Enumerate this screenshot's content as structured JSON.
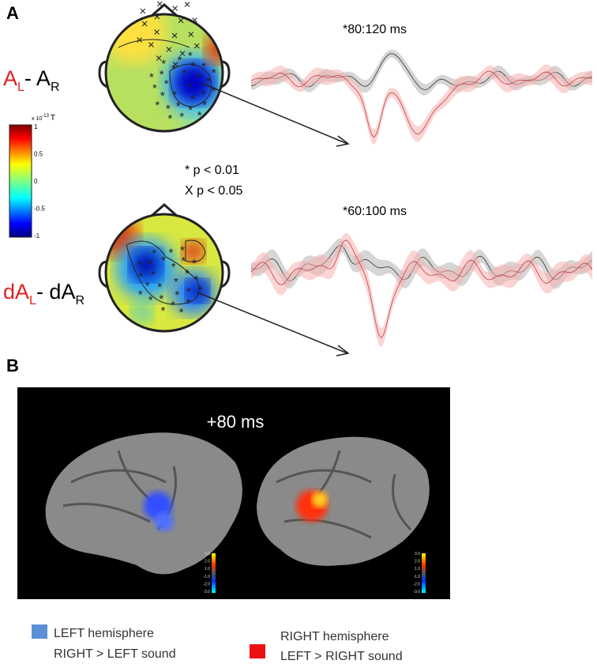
{
  "panel_a": {
    "label": "A",
    "top": {
      "window": "*80:120 ms",
      "cond": {
        "a": "A",
        "a_sub": "L",
        "mid": "- A",
        "b_sub": "R"
      }
    },
    "bottom": {
      "window": "*60:100 ms",
      "cond": {
        "a": "dA",
        "a_sub": "L",
        "mid": "- dA",
        "b_sub": "R"
      }
    },
    "colorbar": {
      "unit_prefix": "x 10",
      "unit_exp": "-13",
      "unit": "T",
      "ticks": [
        "1",
        "0.5",
        "0",
        "-0.5",
        "-1"
      ]
    },
    "significance": [
      "*  p < 0.01",
      "X  p < 0.05"
    ]
  },
  "panel_b": {
    "label": "B",
    "time": "+80 ms",
    "scale": [
      "3.0",
      "2.0",
      "1.0",
      "-1.0",
      "-2.0",
      "-3.0"
    ],
    "legend": [
      {
        "title": "LEFT hemisphere",
        "text": "RIGHT > LEFT sound"
      },
      {
        "title": "RIGHT hemisphere",
        "text": "LEFT >  RIGHT sound"
      }
    ]
  }
}
